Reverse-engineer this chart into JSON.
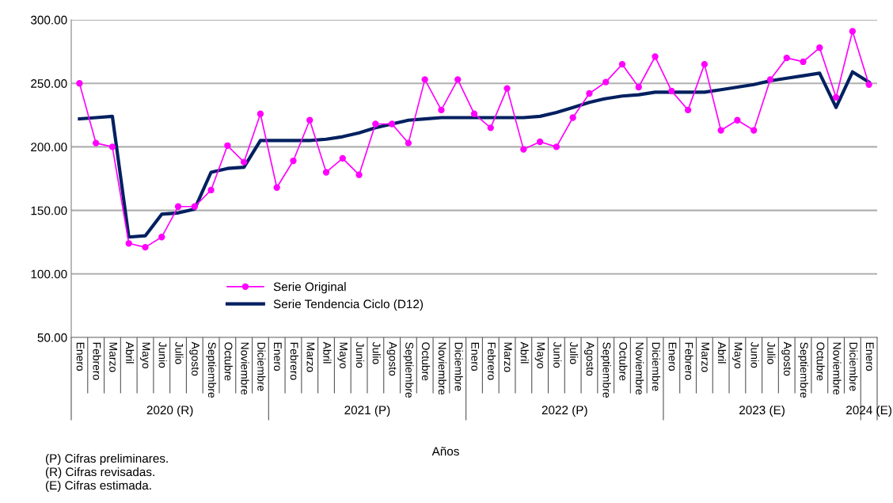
{
  "chart_data": {
    "type": "line",
    "xlabel": "Años",
    "categories": [
      "Enero",
      "Febrero",
      "Marzo",
      "Abril",
      "Mayo",
      "Junio",
      "Julio",
      "Agosto",
      "Septiembre",
      "Octubre",
      "Noviembre",
      "Diciembre",
      "Enero",
      "Febrero",
      "Marzo",
      "Abril",
      "Mayo",
      "Junio",
      "Julio",
      "Agosto",
      "Septiembre",
      "Octubre",
      "Noviembre",
      "Diciembre",
      "Enero",
      "Febrero",
      "Marzo",
      "Abril",
      "Mayo",
      "Junio",
      "Julio",
      "Agosto",
      "Septiembre",
      "Octubre",
      "Noviembre",
      "Diciembre",
      "Enero",
      "Febrero",
      "Marzo",
      "Abril",
      "Mayo",
      "Junio",
      "Julio",
      "Agosto",
      "Septiembre",
      "Octubre",
      "Noviembre",
      "Diciembre",
      "Enero"
    ],
    "series": [
      {
        "name": "Serie Original",
        "color": "#ff00ff",
        "marker": "circle",
        "values": [
          250,
          203,
          200,
          124,
          121,
          129,
          153,
          153,
          166,
          201,
          188,
          226,
          168,
          189,
          221,
          180,
          191,
          178,
          218,
          218,
          203,
          253,
          229,
          253,
          226,
          215,
          246,
          198,
          204,
          200,
          223,
          242,
          251,
          265,
          247,
          271,
          244,
          229,
          265,
          213,
          221,
          213,
          253,
          270,
          267,
          278,
          239,
          291,
          249
        ]
      },
      {
        "name": "Serie Tendencia Ciclo (D12)",
        "color": "#002060",
        "marker": "none",
        "values": [
          222,
          223,
          224,
          129,
          130,
          147,
          148,
          151,
          180,
          183,
          184,
          205,
          205,
          205,
          205,
          206,
          208,
          211,
          215,
          218,
          221,
          222,
          223,
          223,
          223,
          223,
          223,
          223,
          224,
          227,
          231,
          235,
          238,
          240,
          241,
          243,
          243,
          243,
          243,
          245,
          247,
          249,
          252,
          254,
          256,
          258,
          231,
          259,
          251
        ]
      }
    ],
    "ylim": [
      50,
      300
    ],
    "yticks": [
      {
        "value": 50,
        "label": "50.00"
      },
      {
        "value": 100,
        "label": "100.00"
      },
      {
        "value": 150,
        "label": "150.00"
      },
      {
        "value": 200,
        "label": "200.00"
      },
      {
        "value": 250,
        "label": "250.00"
      },
      {
        "value": 300,
        "label": "300.00"
      }
    ],
    "grid": "y",
    "legend": "bottom left",
    "annotations": [
      "2020 (R)",
      "2021 (P)",
      "2022 (P)",
      "2023 (E)",
      "2024 (E)",
      "(P) Cifras preliminares.",
      "(R) Cifras revisadas.",
      "(E) Cifras estimada."
    ]
  }
}
